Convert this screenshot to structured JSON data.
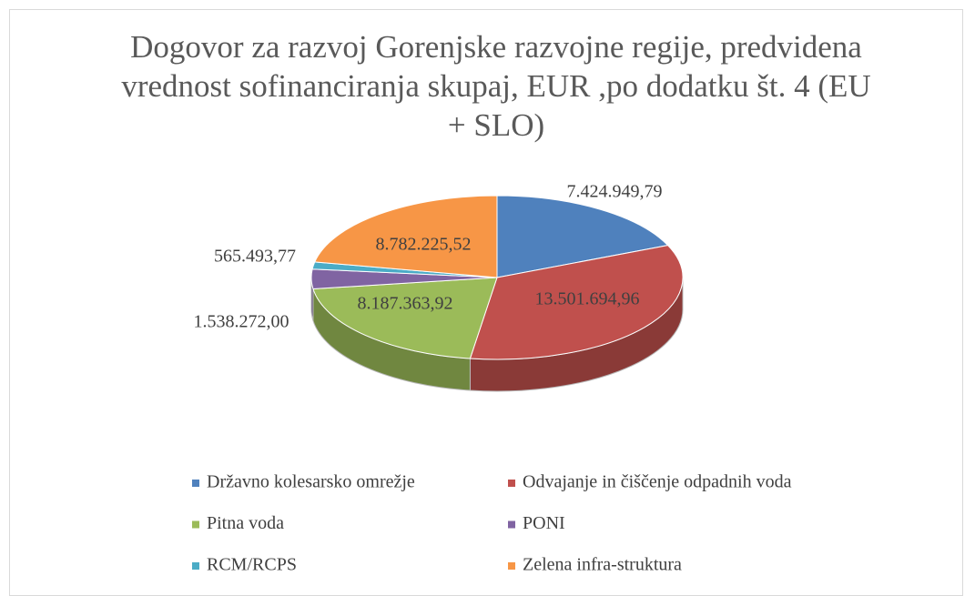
{
  "chart_data": {
    "type": "pie",
    "title": "Dogovor za razvoj Gorenjske razvojne regije, predvidena vrednost sofinanciranja skupaj, EUR ,po dodatku št. 4 (EU + SLO)",
    "categories": [
      "Državno kolesarsko omrežje",
      "Odvajanje in čiščenje odpadnih voda",
      "Pitna voda",
      "PONI",
      "RCM/RCPS",
      "Zelena infra-struktura"
    ],
    "values": [
      7424949.79,
      13501694.96,
      8187363.92,
      1538272.0,
      565493.77,
      8782225.52
    ],
    "value_labels": [
      "7.424.949,79",
      "13.501.694,96",
      "8.187.363,92",
      "1.538.272,00",
      "565.493,77",
      "8.782.225,52"
    ],
    "colors": [
      "#4f81bd",
      "#c0504d",
      "#9bbb59",
      "#8064a2",
      "#4bacc6",
      "#f79646"
    ],
    "legend": "bottom"
  }
}
